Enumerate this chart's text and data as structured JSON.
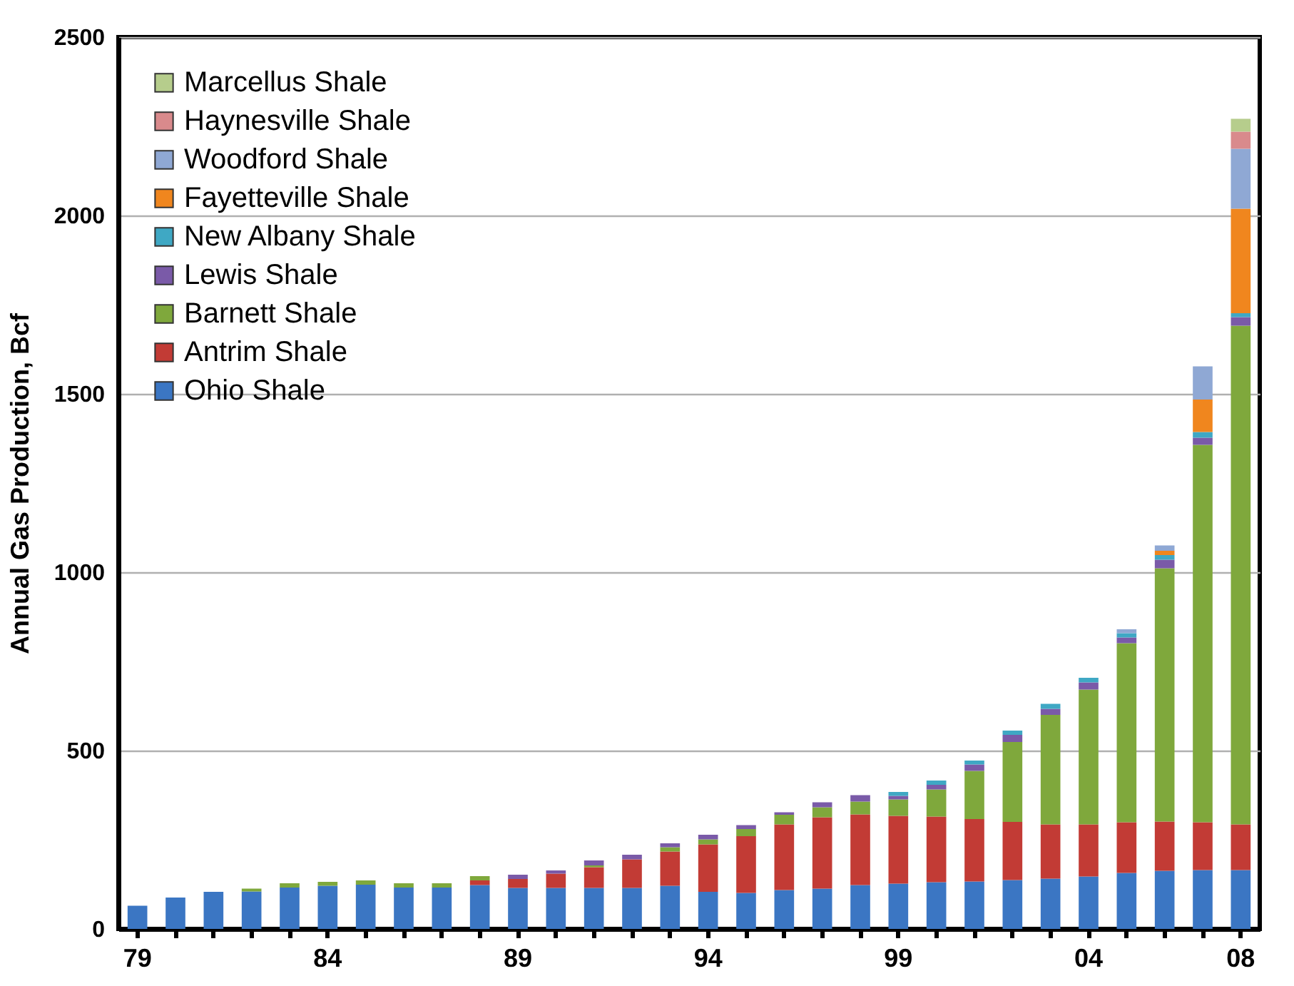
{
  "chart_data": {
    "type": "bar",
    "stacked": true,
    "ylabel": "Annual Gas Production, Bcf",
    "categories": [
      "79",
      null,
      null,
      null,
      null,
      "84",
      null,
      null,
      null,
      null,
      "89",
      null,
      null,
      null,
      null,
      "94",
      null,
      null,
      null,
      null,
      "99",
      null,
      null,
      null,
      null,
      "04",
      null,
      null,
      null,
      "08"
    ],
    "series": [
      {
        "name": "Ohio Shale",
        "color": "#3b76c3",
        "values": [
          65,
          88,
          104,
          105,
          116,
          121,
          124,
          116,
          116,
          123,
          115,
          115,
          115,
          115,
          121,
          104,
          101,
          109,
          113,
          123,
          127,
          131,
          133,
          137,
          141,
          147,
          157,
          163,
          165,
          165
        ]
      },
      {
        "name": "Antrim Shale",
        "color": "#c23b35",
        "values": [
          0,
          0,
          0,
          0,
          0,
          0,
          0,
          0,
          0,
          13,
          25,
          40,
          58,
          80,
          96,
          133,
          159,
          184,
          200,
          198,
          190,
          184,
          175,
          163,
          152,
          146,
          142,
          138,
          134,
          128
        ]
      },
      {
        "name": "Barnett Shale",
        "color": "#7fa83c",
        "values": [
          0,
          0,
          0,
          8,
          12,
          11,
          12,
          12,
          12,
          12,
          0,
          0,
          5,
          0,
          12,
          14,
          20,
          27,
          28,
          36,
          46,
          76,
          135,
          224,
          307,
          378,
          502,
          710,
          1058,
          1398
        ]
      },
      {
        "name": "Lewis Shale",
        "color": "#7a5aa8",
        "values": [
          0,
          0,
          0,
          0,
          0,
          0,
          0,
          0,
          0,
          0,
          12,
          9,
          14,
          13,
          11,
          13,
          11,
          7,
          14,
          18,
          10,
          13,
          18,
          20,
          17,
          20,
          16,
          24,
          20,
          24
        ]
      },
      {
        "name": "New Albany Shale",
        "color": "#3fa8c4",
        "values": [
          0,
          0,
          0,
          0,
          0,
          0,
          0,
          0,
          0,
          0,
          0,
          0,
          0,
          0,
          0,
          0,
          0,
          0,
          0,
          0,
          11,
          12,
          11,
          12,
          14,
          13,
          12,
          13,
          16,
          11
        ]
      },
      {
        "name": "Fayetteville Shale",
        "color": "#f0861e",
        "values": [
          0,
          0,
          0,
          0,
          0,
          0,
          0,
          0,
          0,
          0,
          0,
          0,
          0,
          0,
          0,
          0,
          0,
          0,
          0,
          0,
          0,
          0,
          0,
          0,
          0,
          0,
          0,
          12,
          91,
          293
        ]
      },
      {
        "name": "Woodford Shale",
        "color": "#8fa8d4",
        "values": [
          0,
          0,
          0,
          0,
          0,
          0,
          0,
          0,
          0,
          0,
          0,
          0,
          0,
          0,
          0,
          0,
          0,
          0,
          0,
          0,
          0,
          0,
          0,
          0,
          0,
          0,
          11,
          15,
          93,
          168
        ]
      },
      {
        "name": "Haynesville Shale",
        "color": "#d98a8c",
        "values": [
          0,
          0,
          0,
          0,
          0,
          0,
          0,
          0,
          0,
          0,
          0,
          0,
          0,
          0,
          0,
          0,
          0,
          0,
          0,
          0,
          0,
          0,
          0,
          0,
          0,
          0,
          0,
          0,
          0,
          48
        ]
      },
      {
        "name": "Marcellus Shale",
        "color": "#b6cd8c",
        "values": [
          0,
          0,
          0,
          0,
          0,
          0,
          0,
          0,
          0,
          0,
          0,
          0,
          0,
          0,
          0,
          0,
          0,
          0,
          0,
          0,
          0,
          0,
          0,
          0,
          0,
          0,
          0,
          0,
          0,
          36
        ]
      }
    ],
    "ylim": [
      0,
      2500
    ],
    "yticks": [
      0,
      500,
      1000,
      1500,
      2000,
      2500
    ],
    "grid": "y",
    "legend": "top left"
  }
}
